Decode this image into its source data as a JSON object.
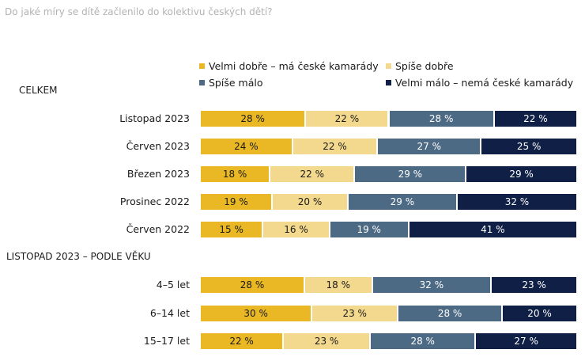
{
  "chart_data": {
    "type": "bar",
    "orientation": "horizontal",
    "stacked": "percent",
    "title": "Do jaké míry se dítě začlenilo do kolektivu českých dětí?",
    "legend_placement": "top",
    "series": [
      {
        "name": "Velmi dobře – má české kamarády",
        "color": "#e9b824"
      },
      {
        "name": "Spíše dobře",
        "color": "#f3d98d"
      },
      {
        "name": "Spíše málo",
        "color": "#4d6a84"
      },
      {
        "name": "Velmi málo – nemá české kamarády",
        "color": "#0f1f45"
      }
    ],
    "groups": [
      {
        "label": "CELKEM",
        "rows": [
          {
            "label": "Listopad 2023",
            "values": [
              28,
              22,
              28,
              22
            ],
            "labels": [
              "28 %",
              "22 %",
              "28 %",
              "22 %"
            ]
          },
          {
            "label": "Červen 2023",
            "values": [
              24,
              22,
              27,
              25
            ],
            "labels": [
              "24 %",
              "22 %",
              "27 %",
              "25 %"
            ]
          },
          {
            "label": "Březen 2023",
            "values": [
              18,
              22,
              29,
              29
            ],
            "labels": [
              "18 %",
              "22 %",
              "29 %",
              "29 %"
            ]
          },
          {
            "label": "Prosinec 2022",
            "values": [
              19,
              20,
              29,
              32
            ],
            "labels": [
              "19 %",
              "20 %",
              "29 %",
              "32 %"
            ]
          },
          {
            "label": "Červen 2022",
            "values": [
              15,
              16,
              19,
              41
            ],
            "labels": [
              "15 %",
              "16 %",
              "19 %",
              "41 %"
            ]
          }
        ]
      },
      {
        "label": "LISTOPAD 2023 – PODLE VĚKU",
        "rows": [
          {
            "label": "4–5 let",
            "values": [
              28,
              18,
              32,
              23
            ],
            "labels": [
              "28 %",
              "18 %",
              "32 %",
              "23 %"
            ]
          },
          {
            "label": "6–14 let",
            "values": [
              30,
              23,
              28,
              20
            ],
            "labels": [
              "30 %",
              "23 %",
              "28 %",
              "20 %"
            ]
          },
          {
            "label": "15–17 let",
            "values": [
              22,
              23,
              28,
              27
            ],
            "labels": [
              "22 %",
              "23 %",
              "28 %",
              "27 %"
            ]
          }
        ]
      }
    ]
  }
}
